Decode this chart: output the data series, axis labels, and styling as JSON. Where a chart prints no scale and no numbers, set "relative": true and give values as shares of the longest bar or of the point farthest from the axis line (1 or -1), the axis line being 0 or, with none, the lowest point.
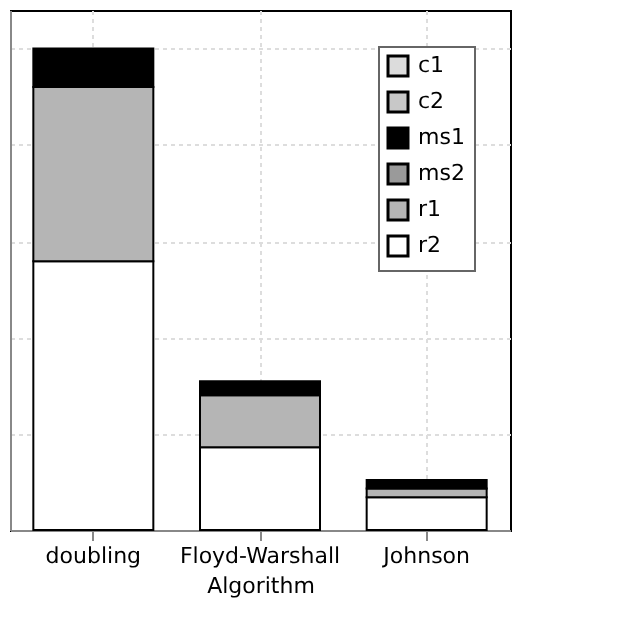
{
  "chart_data": {
    "type": "bar",
    "stacked": true,
    "relative": true,
    "xlabel": "Algorithm",
    "categories": [
      "doubling",
      "Floyd-Warshall",
      "Johnson"
    ],
    "grid": true,
    "legend": "top right",
    "series": [
      {
        "name": "r2",
        "color": "#ffffff",
        "values": [
          0.558,
          0.172,
          0.068
        ]
      },
      {
        "name": "r1",
        "color": "#b5b5b5",
        "values": [
          0.362,
          0.108,
          0.018
        ]
      },
      {
        "name": "ms2",
        "color": "#9a9a9a",
        "values": [
          null,
          null,
          null
        ]
      },
      {
        "name": "ms1",
        "color": "#000000",
        "values": [
          0.08,
          0.029,
          0.018
        ]
      },
      {
        "name": "c2",
        "color": "#c8c8c8",
        "values": [
          null,
          null,
          null
        ]
      },
      {
        "name": "c1",
        "color": "#dcdcdc",
        "values": [
          null,
          null,
          null
        ]
      }
    ]
  }
}
